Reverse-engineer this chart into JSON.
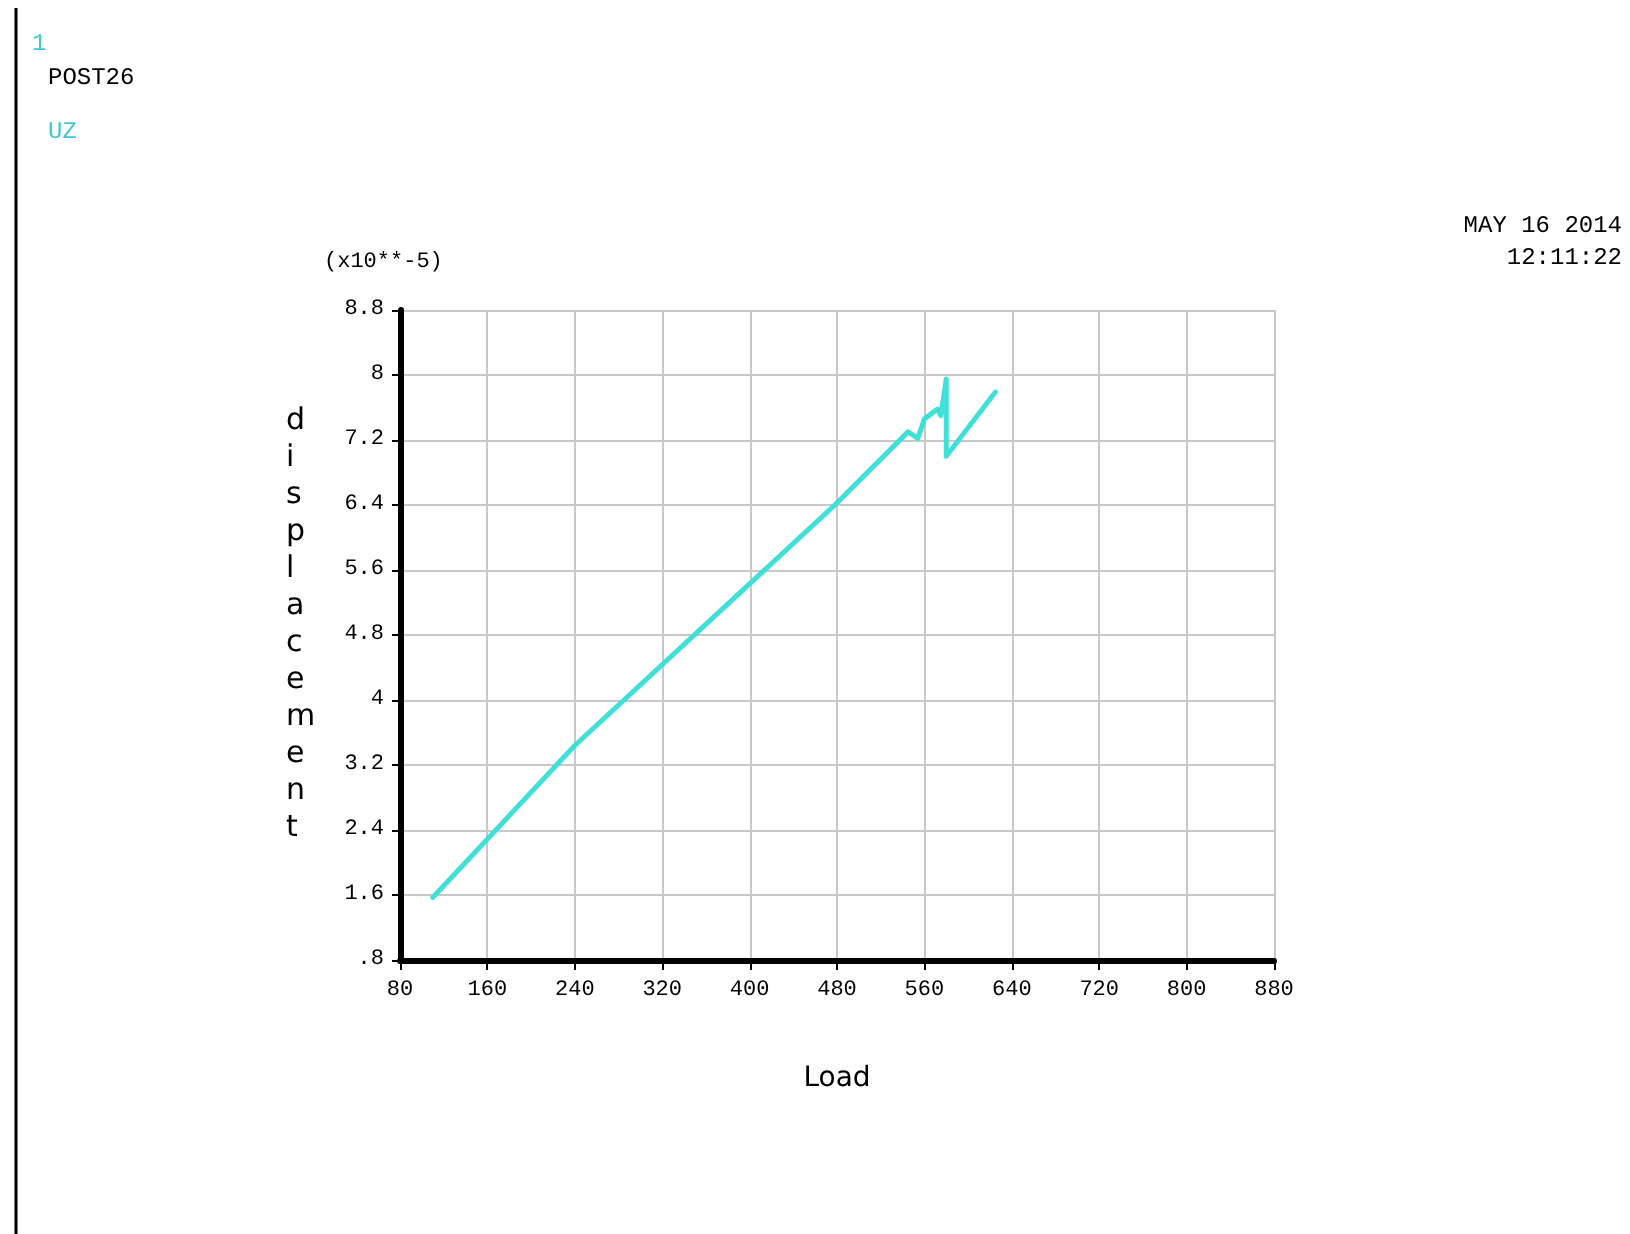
{
  "chart_data": {
    "type": "line",
    "xlabel": "Load",
    "ylabel": "displacement",
    "annotations": [
      "1",
      "POST26",
      "UZ",
      "MAY 16 2014",
      "12:11:22",
      "(x10**-5)"
    ],
    "x": [
      110,
      240,
      478,
      545,
      554,
      560,
      572,
      575,
      580,
      580,
      625
    ],
    "series": [
      {
        "color": "#40e0d8",
        "values": [
          1.57,
          3.44,
          6.4,
          7.3,
          7.22,
          7.46,
          7.58,
          7.5,
          7.95,
          7.0,
          7.79
        ]
      }
    ],
    "xlim": [
      80,
      880
    ],
    "xticks": [
      80,
      160,
      240,
      320,
      400,
      480,
      560,
      640,
      720,
      800,
      880
    ],
    "ylim": [
      0.8,
      8.8
    ],
    "yticks": [
      {
        "value": 0.8,
        "label": ".8"
      },
      1.6,
      2.4,
      3.2,
      4,
      4.8,
      5.6,
      6.4,
      7.2,
      8,
      8.8
    ],
    "grid": true,
    "marker": "none",
    "line_style": "solid"
  }
}
